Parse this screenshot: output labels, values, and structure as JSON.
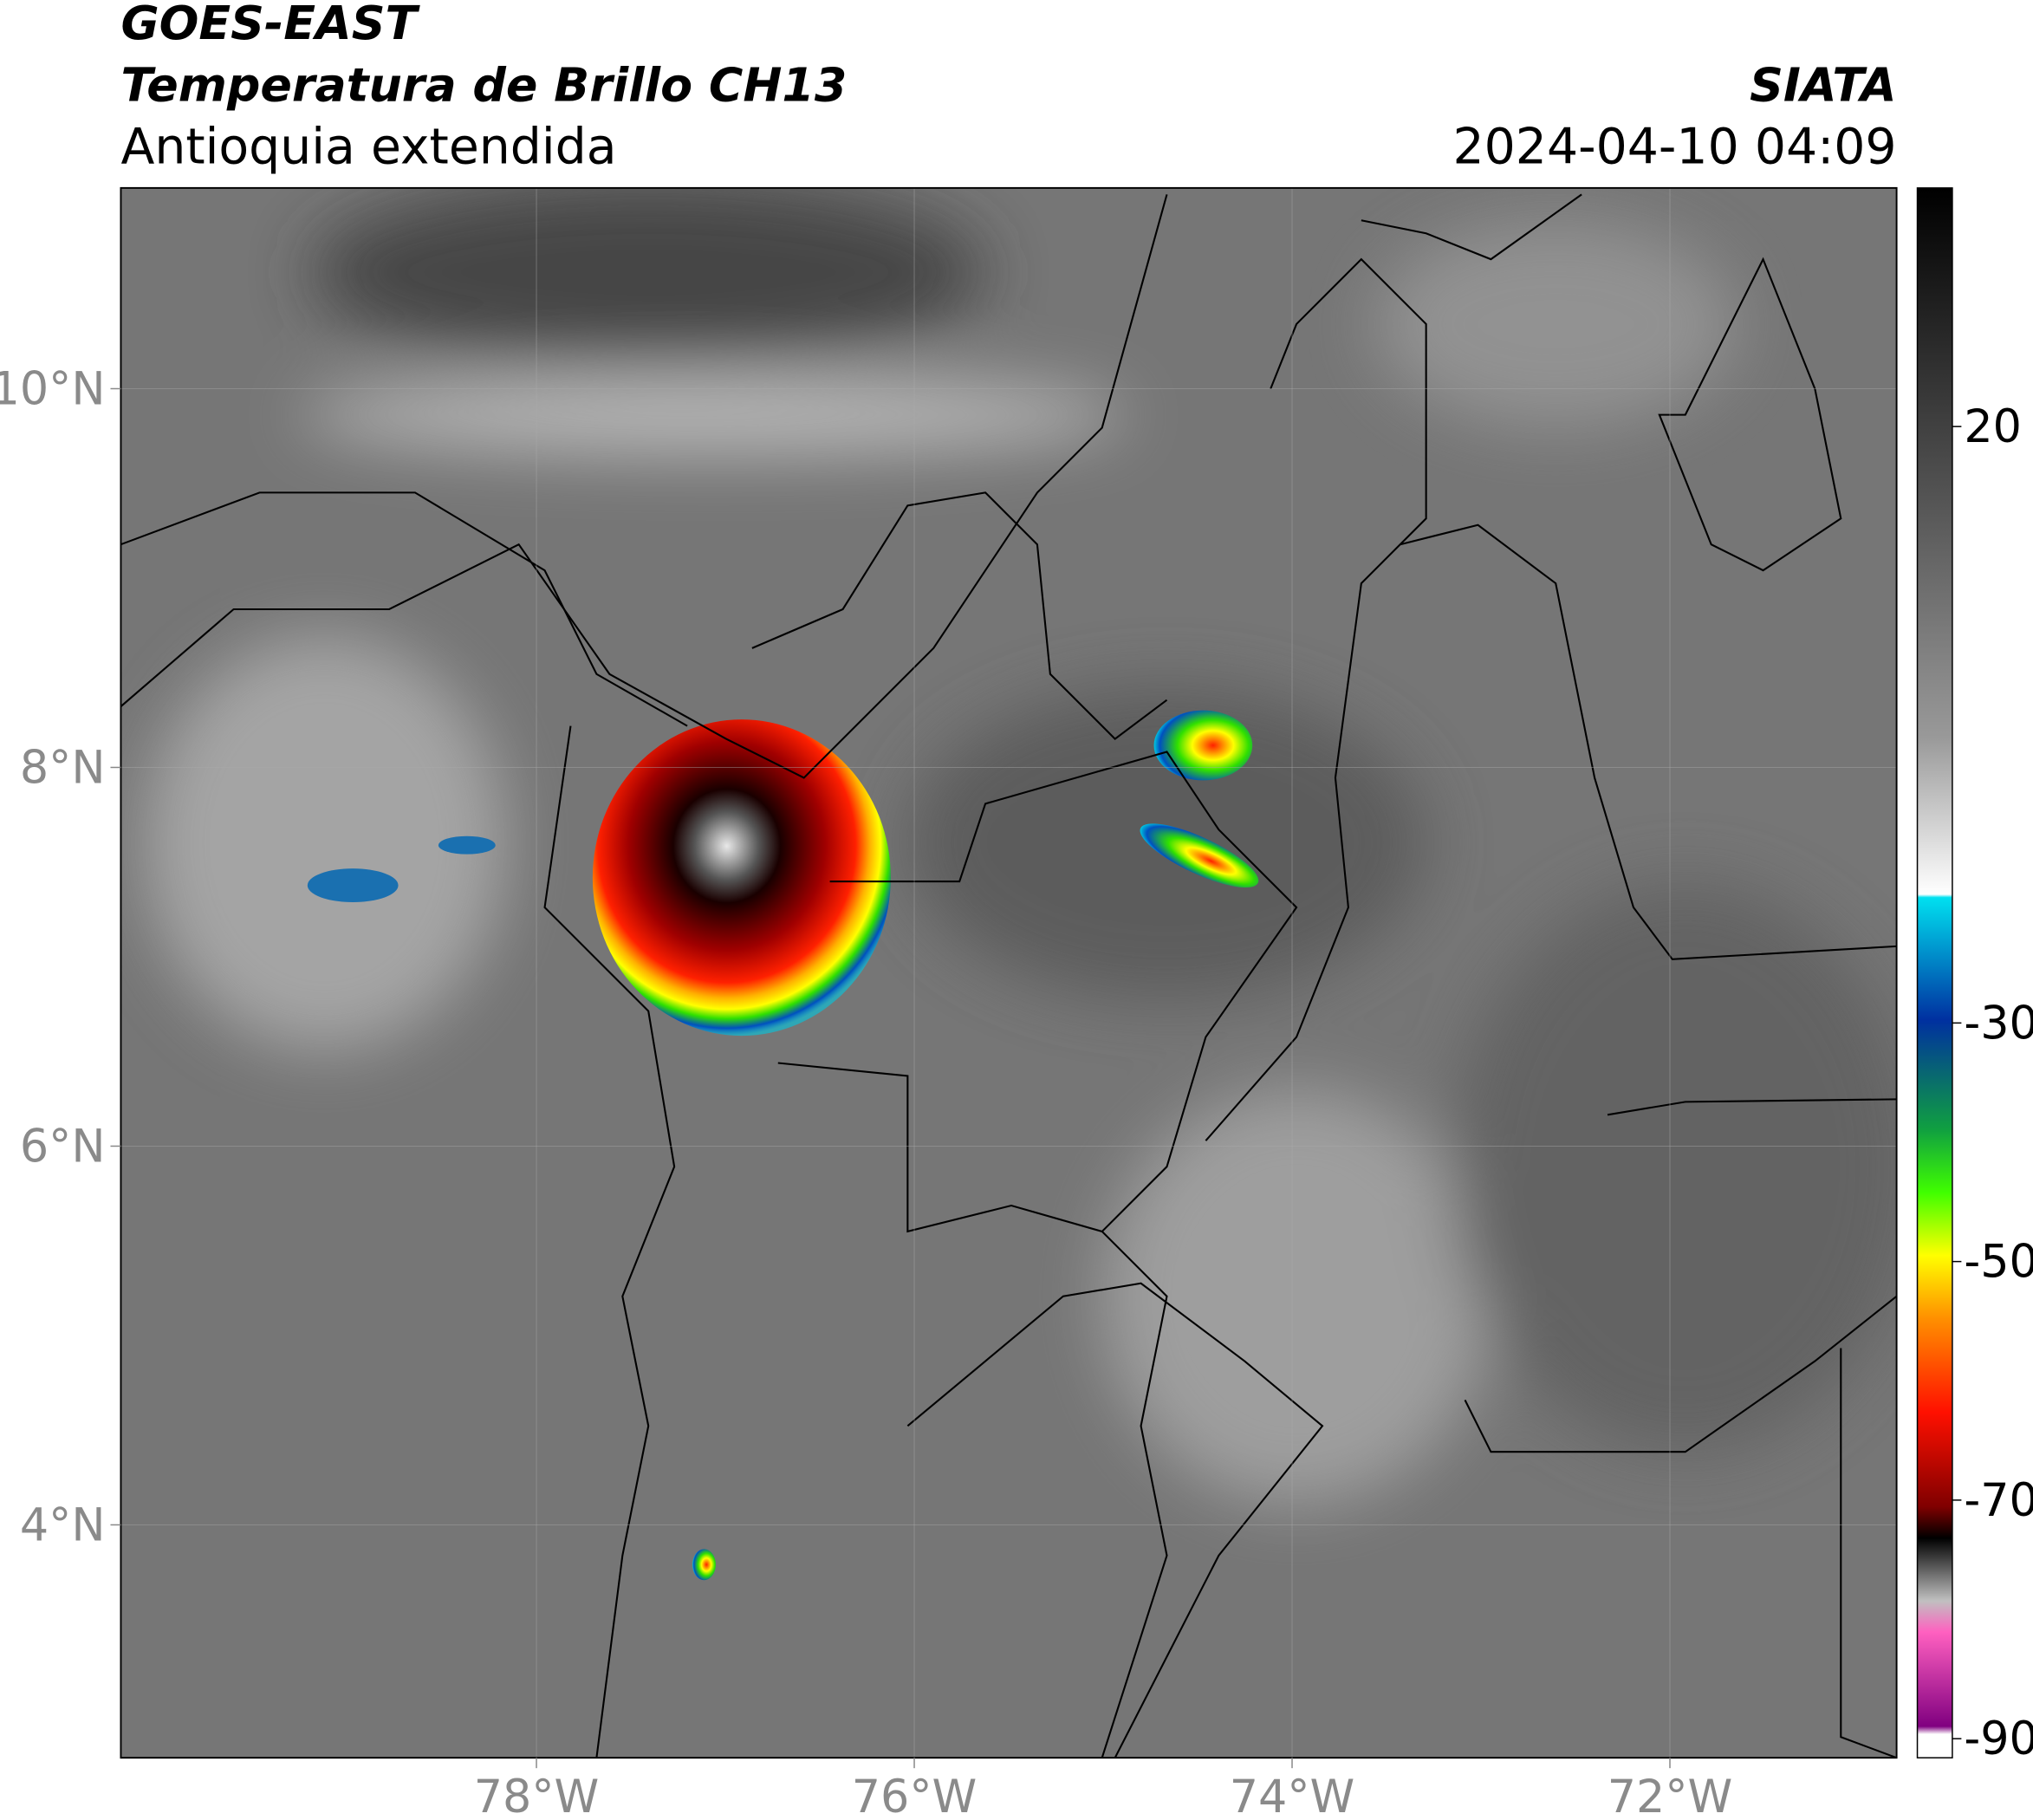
{
  "map": {
    "title": "GOES-EAST",
    "subtitle": "Temperatura de Brillo CH13",
    "region": "Antioquia extendida",
    "source": "SIATA",
    "datetime": "2024-04-10 04:09",
    "lonlim": [
      -80.2,
      -70.8
    ],
    "latlim": [
      2.77,
      11.06
    ],
    "lonticks": [
      {
        "value": -78,
        "label": "78°W"
      },
      {
        "value": -76,
        "label": "76°W"
      },
      {
        "value": -74,
        "label": "74°W"
      },
      {
        "value": -72,
        "label": "72°W"
      }
    ],
    "latticks": [
      {
        "value": 10,
        "label": "10°N"
      },
      {
        "value": 8,
        "label": "8°N"
      },
      {
        "value": 6,
        "label": "6°N"
      },
      {
        "value": 4,
        "label": "4°N"
      }
    ]
  },
  "colorbar": {
    "clim": [
      -91.6,
      40
    ],
    "ticks": [
      20,
      -30,
      -50,
      -70,
      -90
    ]
  }
}
